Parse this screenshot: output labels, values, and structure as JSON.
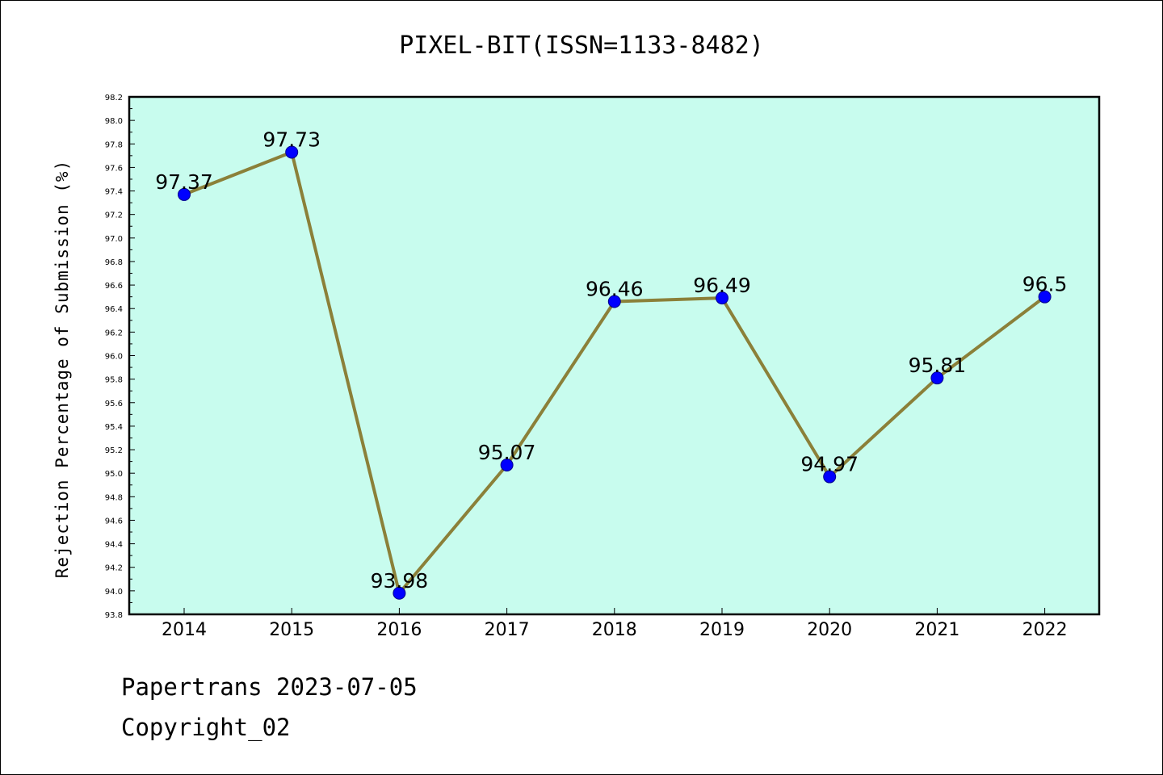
{
  "chart_data": {
    "type": "line",
    "title": "PIXEL-BIT(ISSN=1133-8482)",
    "xlabel": "",
    "ylabel": "Rejection Percentage of Submission (%)",
    "categories": [
      "2014",
      "2015",
      "2016",
      "2017",
      "2018",
      "2019",
      "2020",
      "2021",
      "2022"
    ],
    "values": [
      97.37,
      97.73,
      93.98,
      95.07,
      96.46,
      96.49,
      94.97,
      95.81,
      96.5
    ],
    "data_labels": [
      "97.37",
      "97.73",
      "93.98",
      "95.07",
      "96.46",
      "96.49",
      "94.97",
      "95.81",
      "96.5"
    ],
    "ylim": [
      93.8,
      98.2
    ],
    "yticks": [
      "93.8",
      "94.0",
      "94.2",
      "94.4",
      "94.6",
      "94.8",
      "95.0",
      "95.2",
      "95.4",
      "95.6",
      "95.8",
      "96.0",
      "96.2",
      "96.4",
      "96.6",
      "96.8",
      "97.0",
      "97.2",
      "97.4",
      "97.6",
      "97.8",
      "98.0",
      "98.2"
    ],
    "grid": false,
    "colors": {
      "plot_background": "#c8fcee",
      "line": "#8b8039",
      "marker": "#0000ff"
    }
  },
  "footer": {
    "line1": "Papertrans 2023-07-05",
    "line2": "Copyright_02"
  }
}
